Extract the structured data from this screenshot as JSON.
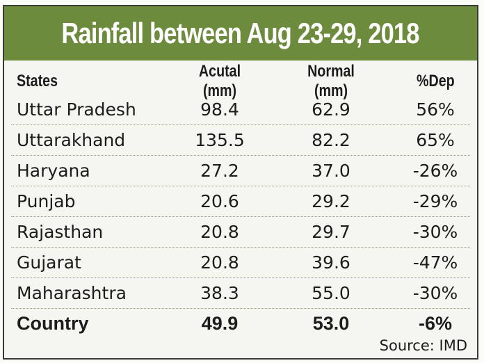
{
  "chart_data": {
    "type": "table",
    "title": "Rainfall between Aug 23-29, 2018",
    "columns": [
      "States",
      "Acutal (mm)",
      "Normal (mm)",
      "%Dep"
    ],
    "rows": [
      [
        "Uttar Pradesh",
        "98.4",
        "62.9",
        "56%"
      ],
      [
        "Uttarakhand",
        "135.5",
        "82.2",
        "65%"
      ],
      [
        "Haryana",
        "27.2",
        "37.0",
        "-26%"
      ],
      [
        "Punjab",
        "20.6",
        "29.2",
        "-29%"
      ],
      [
        "Rajasthan",
        "20.8",
        "29.7",
        "-30%"
      ],
      [
        "Gujarat",
        "20.8",
        "39.6",
        "-47%"
      ],
      [
        "Maharashtra",
        "38.3",
        "55.0",
        "-30%"
      ]
    ],
    "total": [
      "Country",
      "49.9",
      "53.0",
      "-6%"
    ],
    "source": "Source: IMD",
    "colors": {
      "header_band": "#6d8b3c",
      "background": "#f6f6f1"
    }
  }
}
